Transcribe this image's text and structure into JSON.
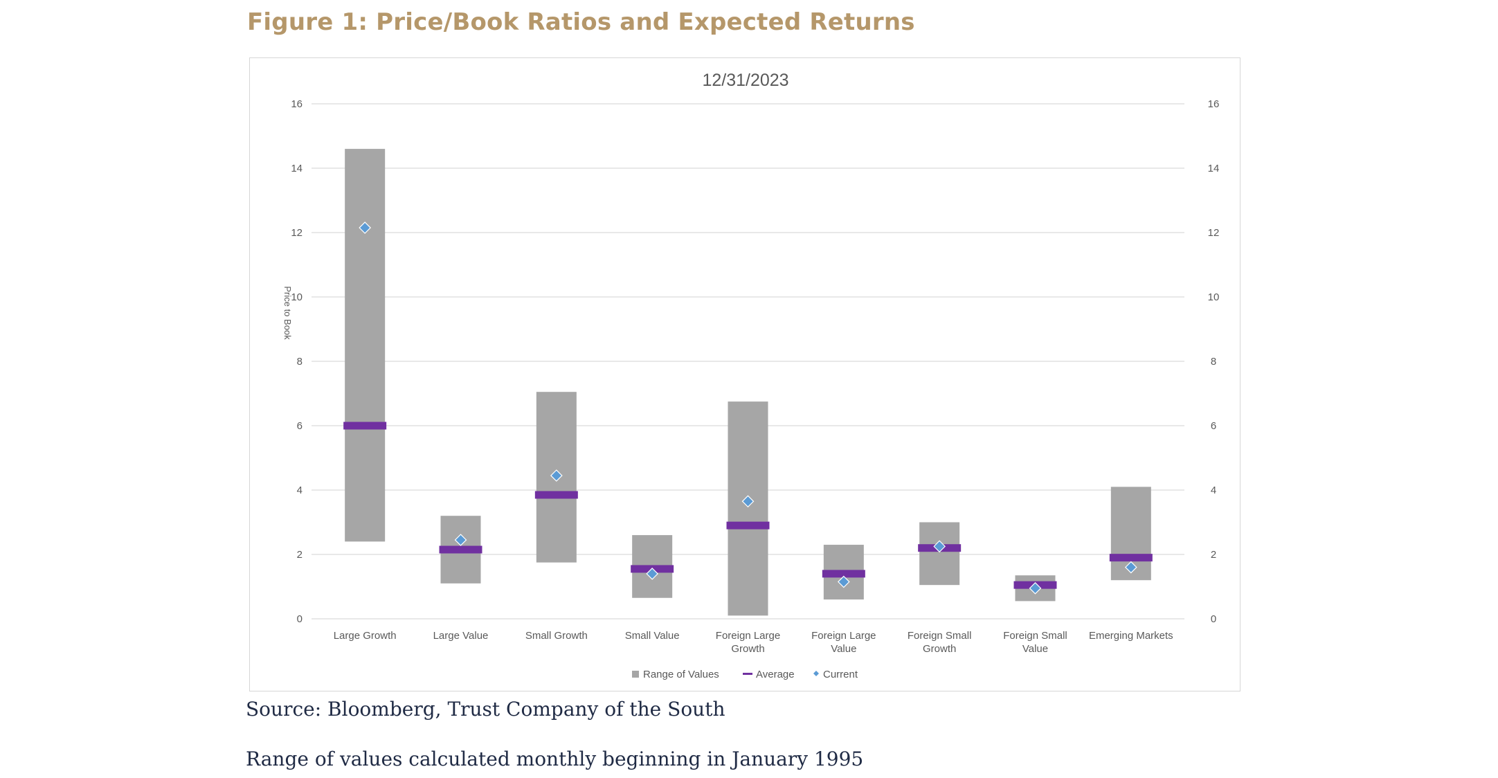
{
  "figure_title": "Figure 1: Price/Book Ratios and Expected Returns",
  "source_note": "Source: Bloomberg, Trust Company of the South",
  "range_note": "Range of values calculated monthly beginning in January 1995",
  "colors": {
    "title": "#b5976a",
    "range_bar": "#a6a6a6",
    "average": "#7030a0",
    "current": "#5b9bd5",
    "grid": "#d9d9d9",
    "axis_text": "#595959"
  },
  "chart_data": {
    "type": "bar",
    "title": "12/31/2023",
    "ylabel": "Price to Book",
    "ylim": [
      0,
      16
    ],
    "yticks": [
      0,
      2,
      4,
      6,
      8,
      10,
      12,
      14,
      16
    ],
    "secondary_axis": true,
    "grid": true,
    "legend_position": "bottom",
    "categories": [
      [
        "Large Growth"
      ],
      [
        "Large Value"
      ],
      [
        "Small Growth"
      ],
      [
        "Small Value"
      ],
      [
        "Foreign Large",
        "Growth"
      ],
      [
        "Foreign Large",
        "Value"
      ],
      [
        "Foreign Small",
        "Growth"
      ],
      [
        "Foreign Small",
        "Value"
      ],
      [
        "Emerging Markets"
      ]
    ],
    "series": [
      {
        "name": "Range of Values",
        "kind": "range",
        "low": [
          2.4,
          1.1,
          1.75,
          0.65,
          0.1,
          0.6,
          1.05,
          0.55,
          1.2
        ],
        "high": [
          14.6,
          3.2,
          7.05,
          2.6,
          6.75,
          2.3,
          3.0,
          1.35,
          4.1
        ]
      },
      {
        "name": "Average",
        "kind": "marker-line",
        "values": [
          6.0,
          2.15,
          3.85,
          1.55,
          2.9,
          1.4,
          2.2,
          1.05,
          1.9
        ]
      },
      {
        "name": "Current",
        "kind": "marker-diamond",
        "values": [
          12.15,
          2.45,
          4.45,
          1.4,
          3.65,
          1.15,
          2.25,
          0.95,
          1.6
        ]
      }
    ]
  }
}
